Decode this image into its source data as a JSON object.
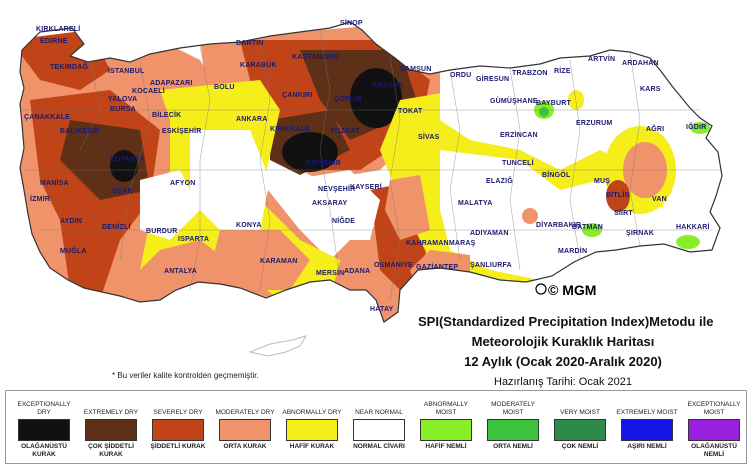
{
  "map": {
    "copyright": "© MGM",
    "note": "* Bu veriler kalite kontrolden geçmemiştir.",
    "title_lines": [
      "SPI(Standardized Precipitation Index)Metodu ile",
      "Meteorolojik Kuraklık Haritası",
      "12 Aylık (Ocak 2020-Aralık 2020)"
    ],
    "prepared": "Hazırlanış Tarihi: Ocak 2021",
    "cities": [
      "KIRKLARELİ",
      "EDİRNE",
      "TEKİRDAĞ",
      "İSTANBUL",
      "BARTIN",
      "SİNOP",
      "KASTAMONU",
      "KARABÜK",
      "ÇANKIRI",
      "ÇORUM",
      "ARTVİN",
      "ARDAHAN",
      "TRABZON",
      "RİZE",
      "GÜMÜŞHANE",
      "BAYBURT",
      "KARS",
      "IĞDIR",
      "AĞRI",
      "ERZURUM",
      "ERZİNCAN",
      "TUNCELİ",
      "BİNGÖL",
      "MUŞ",
      "BİTLİS",
      "VAN",
      "SİİRT",
      "HAKKARİ",
      "ŞIRNAK",
      "BATMAN",
      "MARDİN",
      "DİYARBAKIR",
      "ELAZIĞ",
      "MALATYA",
      "ADIYAMAN",
      "ŞANLIURFA",
      "GAZİANTEP",
      "OSMANİYE",
      "ADANA",
      "HATAY",
      "KAHRAMANMARAŞ",
      "MERSİN",
      "KARAMAN",
      "KONYA",
      "NİĞDE",
      "AKSARAY",
      "NEVŞEHİR",
      "KAYSERİ",
      "SİVAS",
      "YOZGAT",
      "KIRIKKALE",
      "ANKARA",
      "KIRŞEHİR",
      "ESKİŞEHİR",
      "BİLECİK",
      "BOLU",
      "ADAPAZARI",
      "KOCAELİ",
      "YALOVA",
      "BURSA",
      "BALIKESİR",
      "ÇANAKKALE",
      "MANİSA",
      "İZMİR",
      "AYDIN",
      "MUĞLA",
      "DENİZLİ",
      "UŞAK",
      "KÜTAHYA",
      "AFYON",
      "ISPARTA",
      "BURDUR",
      "ANTALYA",
      "TOKAT",
      "AMASYA",
      "SAMSUN",
      "ORDU",
      "GİRESUN"
    ],
    "colors": {
      "exceptionally_dry": "#111111",
      "extremely_dry": "#5e3018",
      "severely_dry": "#c04418",
      "moderately_dry": "#f0936a",
      "abnormally_dry": "#f5ee1a",
      "near_normal": "#ffffff",
      "abnormally_moist": "#88ee28",
      "moderately_moist": "#3cc23c",
      "very_moist": "#2e8a4a",
      "extremely_moist": "#1414e6",
      "exceptionally_moist": "#9a20e0"
    }
  },
  "legend": [
    {
      "en": "EXCEPTIONALLY DRY",
      "tr": "OLAĞANÜSTÜ KURAK",
      "color": "#111111"
    },
    {
      "en": "EXTREMELY DRY",
      "tr": "ÇOK ŞİDDETLİ KURAK",
      "color": "#5e3018"
    },
    {
      "en": "SEVERELY DRY",
      "tr": "ŞİDDETLİ KURAK",
      "color": "#c04418"
    },
    {
      "en": "MODERATELY DRY",
      "tr": "ORTA KURAK",
      "color": "#f0936a"
    },
    {
      "en": "ABNORMALLY DRY",
      "tr": "HAFİF KURAK",
      "color": "#f5ee1a"
    },
    {
      "en": "NEAR NORMAL",
      "tr": "NORMAL CİVARI",
      "color": "#ffffff"
    },
    {
      "en": "ABNORMALLY MOIST",
      "tr": "HAFİF NEMLİ",
      "color": "#88ee28"
    },
    {
      "en": "MODERATELY MOIST",
      "tr": "ORTA NEMLİ",
      "color": "#3cc23c"
    },
    {
      "en": "VERY MOIST",
      "tr": "ÇOK NEMLİ",
      "color": "#2e8a4a"
    },
    {
      "en": "EXTREMELY MOIST",
      "tr": "AŞIRI NEMLİ",
      "color": "#1414e6"
    },
    {
      "en": "EXCEPTIONALLY MOIST",
      "tr": "OLAĞANÜSTÜ NEMLİ",
      "color": "#9a20e0"
    }
  ]
}
